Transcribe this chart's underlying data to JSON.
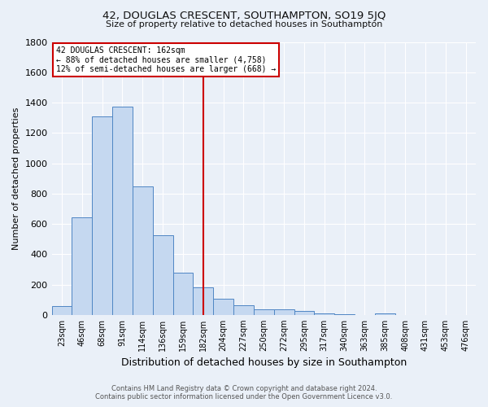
{
  "title": "42, DOUGLAS CRESCENT, SOUTHAMPTON, SO19 5JQ",
  "subtitle": "Size of property relative to detached houses in Southampton",
  "xlabel": "Distribution of detached houses by size in Southampton",
  "ylabel": "Number of detached properties",
  "footnote1": "Contains HM Land Registry data © Crown copyright and database right 2024.",
  "footnote2": "Contains public sector information licensed under the Open Government Licence v3.0.",
  "bar_labels": [
    "23sqm",
    "46sqm",
    "68sqm",
    "91sqm",
    "114sqm",
    "136sqm",
    "159sqm",
    "182sqm",
    "204sqm",
    "227sqm",
    "250sqm",
    "272sqm",
    "295sqm",
    "317sqm",
    "340sqm",
    "363sqm",
    "385sqm",
    "408sqm",
    "431sqm",
    "453sqm",
    "476sqm"
  ],
  "bar_values": [
    57,
    643,
    1307,
    1374,
    847,
    527,
    277,
    184,
    104,
    65,
    36,
    35,
    25,
    12,
    5,
    0,
    12,
    0,
    0,
    0,
    0
  ],
  "bar_color": "#c5d8f0",
  "bar_edge_color": "#4f86c4",
  "bg_color": "#eaf0f8",
  "grid_color": "#ffffff",
  "vline_x": 7.0,
  "vline_color": "#cc0000",
  "annotation_text": "42 DOUGLAS CRESCENT: 162sqm\n← 88% of detached houses are smaller (4,758)\n12% of semi-detached houses are larger (668) →",
  "annotation_box_color": "white",
  "annotation_box_edge": "#cc0000",
  "ylim": [
    0,
    1800
  ],
  "yticks": [
    0,
    200,
    400,
    600,
    800,
    1000,
    1200,
    1400,
    1600,
    1800
  ],
  "title_fontsize": 9.5,
  "subtitle_fontsize": 8,
  "ylabel_fontsize": 8,
  "xlabel_fontsize": 9,
  "tick_fontsize": 7,
  "footnote_fontsize": 6
}
